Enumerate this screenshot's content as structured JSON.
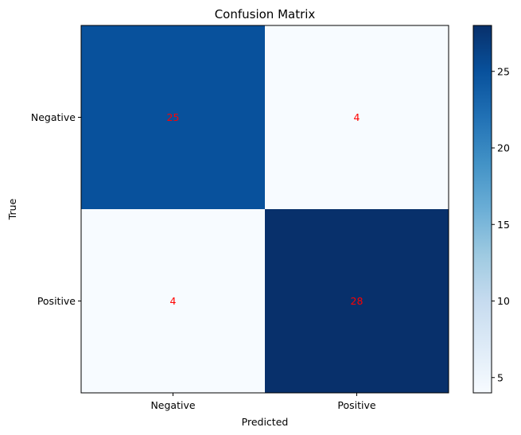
{
  "chart_data": {
    "type": "heatmap",
    "title": "Confusion Matrix",
    "xlabel": "Predicted",
    "ylabel": "True",
    "x_categories": [
      "Negative",
      "Positive"
    ],
    "y_categories": [
      "Negative",
      "Positive"
    ],
    "values": [
      [
        25,
        4
      ],
      [
        4,
        28
      ]
    ],
    "colormap": "Blues",
    "color_range": [
      4,
      28
    ],
    "colorbar_ticks": [
      "5",
      "10",
      "15",
      "20",
      "25"
    ],
    "cell_label_color": "#ff0000",
    "grid": false,
    "legend": "colorbar-right"
  }
}
